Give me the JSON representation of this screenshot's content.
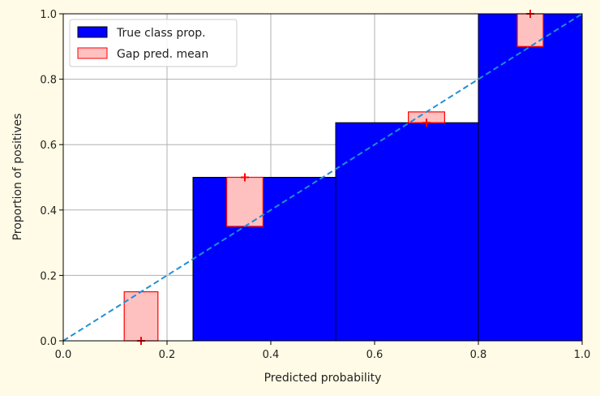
{
  "chart_data": {
    "type": "bar",
    "xlabel": "Predicted probability",
    "ylabel": "Proportion of positives",
    "xlim": [
      0,
      1
    ],
    "ylim": [
      0,
      1
    ],
    "xticks": [
      "0.0",
      "0.2",
      "0.4",
      "0.6",
      "0.8",
      "1.0"
    ],
    "yticks": [
      "0.0",
      "0.2",
      "0.4",
      "0.6",
      "0.8",
      "1.0"
    ],
    "grid": true,
    "legend_position": "top-left",
    "series": [
      {
        "name": "True class prop.",
        "kind": "histogram",
        "color": "#0000ff",
        "edge_color": "#000000",
        "bins": [
          {
            "x0": 0.0,
            "x1": 0.25,
            "value": 0.0
          },
          {
            "x0": 0.25,
            "x1": 0.525,
            "value": 0.5
          },
          {
            "x0": 0.525,
            "x1": 0.8,
            "value": 0.667
          },
          {
            "x0": 0.8,
            "x1": 1.0,
            "value": 1.0
          }
        ]
      },
      {
        "name": "Gap pred. mean",
        "kind": "gap-bars",
        "color": "#ffc0c0",
        "edge_color": "#ff0000",
        "bars": [
          {
            "center": 0.15,
            "width": 0.065,
            "from": 0.0,
            "to": 0.15,
            "mean": 0.0
          },
          {
            "center": 0.35,
            "width": 0.07,
            "from": 0.35,
            "to": 0.5,
            "mean": 0.5
          },
          {
            "center": 0.7,
            "width": 0.07,
            "from": 0.667,
            "to": 0.7,
            "mean": 0.667
          },
          {
            "center": 0.9,
            "width": 0.05,
            "from": 0.9,
            "to": 1.0,
            "mean": 1.0
          }
        ]
      },
      {
        "name": "",
        "kind": "reference-line",
        "style": "dashed",
        "color": "#1f8fd6",
        "points": [
          [
            0,
            0
          ],
          [
            1,
            1
          ]
        ]
      }
    ]
  }
}
